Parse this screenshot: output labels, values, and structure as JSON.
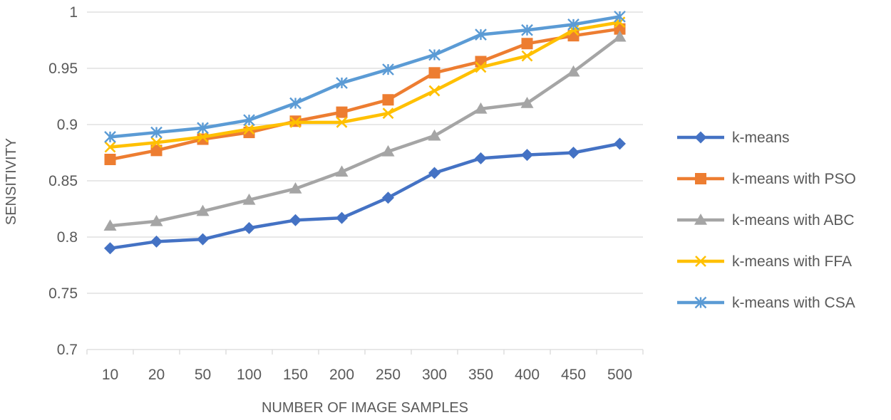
{
  "chart_data": {
    "type": "line",
    "title": "",
    "xlabel": "NUMBER OF IMAGE SAMPLES",
    "ylabel": "SENSITIVITY",
    "categories": [
      "10",
      "20",
      "50",
      "100",
      "150",
      "200",
      "250",
      "300",
      "350",
      "400",
      "450",
      "500"
    ],
    "ylim": [
      0.7,
      1
    ],
    "yticks": [
      0.7,
      0.75,
      0.8,
      0.85,
      0.9,
      0.95,
      1
    ],
    "ytick_labels": [
      "0.7",
      "0.75",
      "0.8",
      "0.85",
      "0.9",
      "0.95",
      "1"
    ],
    "grid": true,
    "legend_position": "right",
    "series": [
      {
        "name": "k-means",
        "color": "#4472C4",
        "marker": "diamond",
        "values": [
          0.79,
          0.796,
          0.798,
          0.808,
          0.815,
          0.817,
          0.835,
          0.857,
          0.87,
          0.873,
          0.875,
          0.883
        ]
      },
      {
        "name": "k-means with PSO",
        "color": "#ED7D31",
        "marker": "square",
        "values": [
          0.869,
          0.877,
          0.887,
          0.893,
          0.903,
          0.911,
          0.922,
          0.946,
          0.956,
          0.972,
          0.979,
          0.985
        ]
      },
      {
        "name": "k-means with ABC",
        "color": "#A5A5A5",
        "marker": "triangle",
        "values": [
          0.81,
          0.814,
          0.823,
          0.833,
          0.843,
          0.858,
          0.876,
          0.89,
          0.914,
          0.919,
          0.947,
          0.978
        ]
      },
      {
        "name": "k-means with FFA",
        "color": "#FFC000",
        "marker": "x",
        "values": [
          0.88,
          0.884,
          0.889,
          0.896,
          0.902,
          0.902,
          0.91,
          0.93,
          0.951,
          0.961,
          0.984,
          0.991
        ]
      },
      {
        "name": "k-means with CSA",
        "color": "#5B9BD5",
        "marker": "star",
        "values": [
          0.889,
          0.893,
          0.897,
          0.904,
          0.919,
          0.937,
          0.949,
          0.962,
          0.98,
          0.984,
          0.989,
          0.996
        ]
      }
    ]
  }
}
